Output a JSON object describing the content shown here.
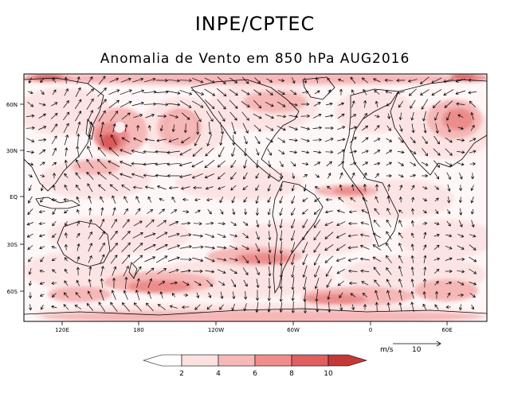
{
  "header": {
    "title": "INPE/CPTEC",
    "subtitle": "Anomalia de Vento em 850 hPa AUG2016"
  },
  "map": {
    "lat_labels": [
      "60N",
      "30N",
      "EQ",
      "30S",
      "60S"
    ],
    "lon_labels": [
      "120E",
      "180",
      "120W",
      "60W",
      "0",
      "60E"
    ]
  },
  "reference_vector": {
    "unit_label": "m/s",
    "value_label": "10"
  },
  "colorbar": {
    "tick_labels": [
      "2",
      "4",
      "6",
      "8",
      "10"
    ],
    "colors": [
      "#ffffff",
      "#fde0e0",
      "#f7b8b8",
      "#ef8d8d",
      "#e05f5f",
      "#c43838"
    ]
  },
  "palette": {
    "shade_1": "#fde4e4",
    "shade_2": "#f6b7b7",
    "shade_3": "#ec8c8c",
    "shade_4": "#d85a5a",
    "arrow": "#000000"
  }
}
